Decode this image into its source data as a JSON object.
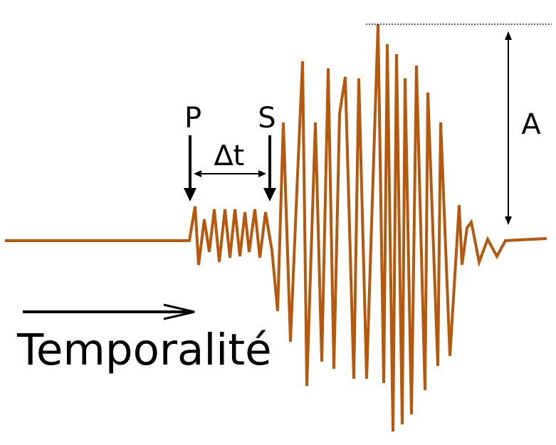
{
  "labels": {
    "p_wave": "P",
    "s_wave": "S",
    "delta_t": "∆t",
    "amplitude": "A",
    "time_axis": "Temporalité"
  },
  "colors": {
    "signal": "#b5590f",
    "annotation": "#000000"
  },
  "icons": {
    "time_arrow": "arrow-right-icon",
    "p_marker": "arrow-down-icon",
    "s_marker": "arrow-down-icon"
  }
}
